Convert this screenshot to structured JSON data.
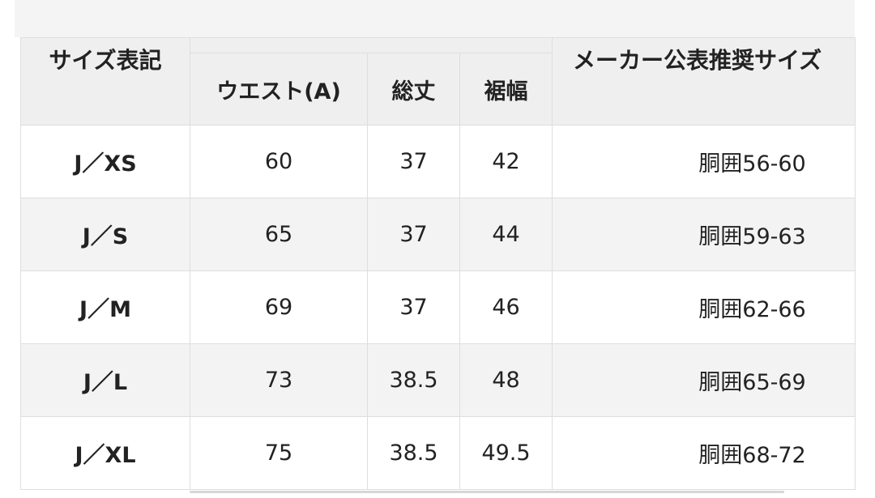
{
  "table": {
    "headers": {
      "size": "サイズ表記",
      "waist": "ウエスト(A)",
      "length": "総丈",
      "hem": "裾幅",
      "maker": "メーカー公表推奨サイズ"
    },
    "rows": [
      {
        "size": "J／XS",
        "waist": "60",
        "length": "37",
        "hem": "42",
        "maker": "胴囲56-60"
      },
      {
        "size": "J／S",
        "waist": "65",
        "length": "37",
        "hem": "44",
        "maker": "胴囲59-63"
      },
      {
        "size": "J／M",
        "waist": "69",
        "length": "37",
        "hem": "46",
        "maker": "胴囲62-66"
      },
      {
        "size": "J／L",
        "waist": "73",
        "length": "38.5",
        "hem": "48",
        "maker": "胴囲65-69"
      },
      {
        "size": "J／XL",
        "waist": "75",
        "length": "38.5",
        "hem": "49.5",
        "maker": "胴囲68-72"
      }
    ]
  }
}
